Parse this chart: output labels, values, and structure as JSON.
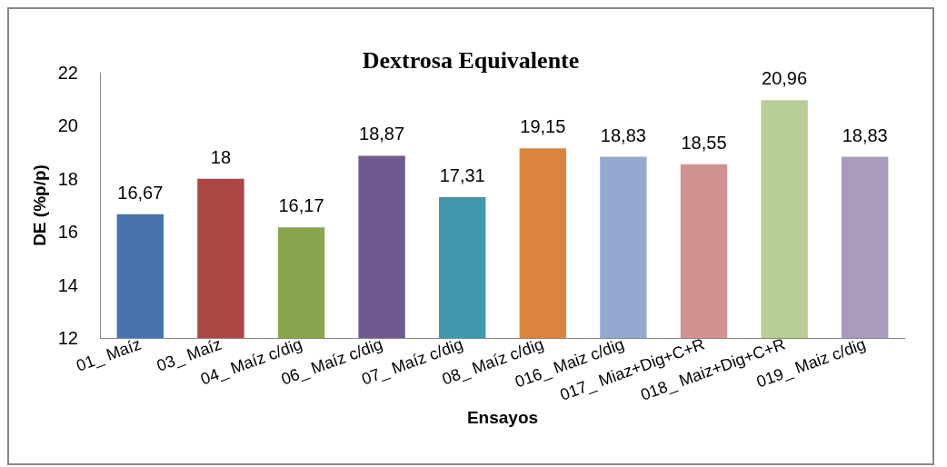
{
  "chart_data": {
    "type": "bar",
    "title": "Dextrosa Equivalente",
    "xlabel": "Ensayos",
    "ylabel": "DE (%p/p)",
    "categories": [
      "01_ Maíz",
      "03_ Maíz",
      "04_ Maíz c/dig",
      "06_ Maíz c/dig",
      "07_ Maíz c/dig",
      "08_ Maíz c/dig",
      "016_ Maiz c/dig",
      "017_ Miaz+Dig+C+R",
      "018_ Maiz+Dig+C+R",
      "019_ Maiz c/dig"
    ],
    "values": [
      16.67,
      18,
      16.17,
      18.87,
      17.31,
      19.15,
      18.83,
      18.55,
      20.96,
      18.83
    ],
    "value_labels": [
      "16,67",
      "18",
      "16,17",
      "18,87",
      "17,31",
      "19,15",
      "18,83",
      "18,55",
      "20,96",
      "18,83"
    ],
    "colors": [
      "#4673aa",
      "#aa4644",
      "#89a54e",
      "#71588f",
      "#4198af",
      "#db843d",
      "#93a9cf",
      "#d19392",
      "#b9cd96",
      "#a99bbd"
    ],
    "ylim": [
      12,
      22
    ],
    "yticks": [
      12,
      14,
      16,
      18,
      20,
      22
    ],
    "grid": false
  }
}
